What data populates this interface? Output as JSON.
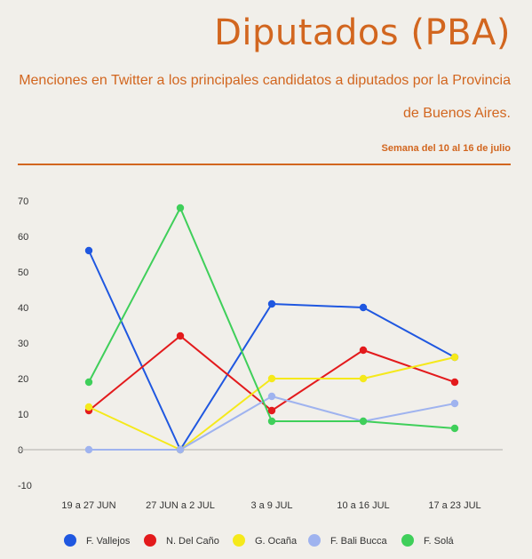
{
  "header": {
    "title": "Diputados (PBA)",
    "subtitle": "Menciones en Twitter a los principales candidatos a diputados por la Provincia de Buenos Aires.",
    "week": "Semana del 10 al 16 de julio"
  },
  "chart_data": {
    "type": "line",
    "categories": [
      "19 a 27 JUN",
      "27 JUN a 2 JUL",
      "3 a 9 JUL",
      "10 a 16 JUL",
      "17 a 23 JUL"
    ],
    "ylim": [
      -10,
      70
    ],
    "yticks": [
      -10,
      0,
      10,
      20,
      30,
      40,
      50,
      60,
      70
    ],
    "grid": false,
    "legend": "bottom",
    "series": [
      {
        "name": "F. Vallejos",
        "color": "#1f57e0",
        "values": [
          56,
          0,
          41,
          40,
          26
        ]
      },
      {
        "name": "N. Del Caño",
        "color": "#e31a1c",
        "values": [
          11,
          32,
          11,
          28,
          19
        ]
      },
      {
        "name": "G. Ocaña",
        "color": "#f5e91b",
        "values": [
          12,
          0,
          20,
          20,
          26
        ]
      },
      {
        "name": "F. Bali Bucca",
        "color": "#9fb3ef",
        "values": [
          0,
          0,
          15,
          8,
          13
        ]
      },
      {
        "name": "F. Solá",
        "color": "#3fcf5a",
        "values": [
          19,
          68,
          8,
          8,
          6
        ]
      }
    ]
  }
}
